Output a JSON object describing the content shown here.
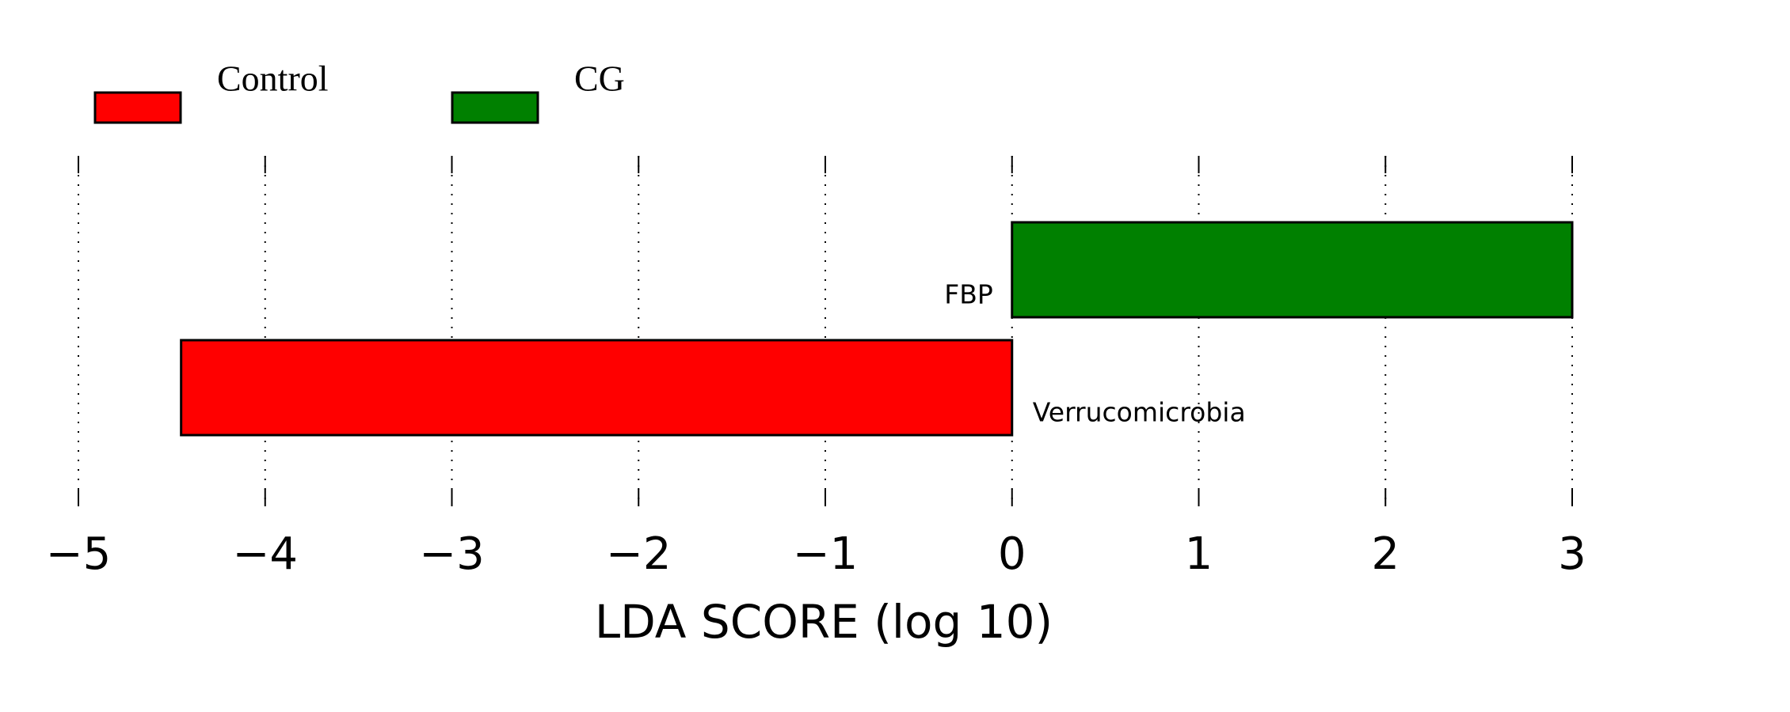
{
  "chart_data": {
    "type": "bar",
    "orientation": "horizontal",
    "xlabel": "LDA SCORE (log 10)",
    "categories": [
      "FBP",
      "Verrucomicrobia"
    ],
    "series": [
      {
        "name": "Control",
        "color": "#ff0000",
        "values": [
          null,
          -4.45
        ]
      },
      {
        "name": "CG",
        "color": "#008000",
        "values": [
          3,
          null
        ]
      }
    ],
    "xlim": [
      -5,
      3
    ],
    "xticks": [
      {
        "value": -5,
        "label": "−5"
      },
      {
        "value": -4,
        "label": "−4"
      },
      {
        "value": -3,
        "label": "−3"
      },
      {
        "value": -2,
        "label": "−2"
      },
      {
        "value": -1,
        "label": "−1"
      },
      0,
      1,
      2,
      3
    ],
    "grid": true,
    "legend": "top"
  }
}
